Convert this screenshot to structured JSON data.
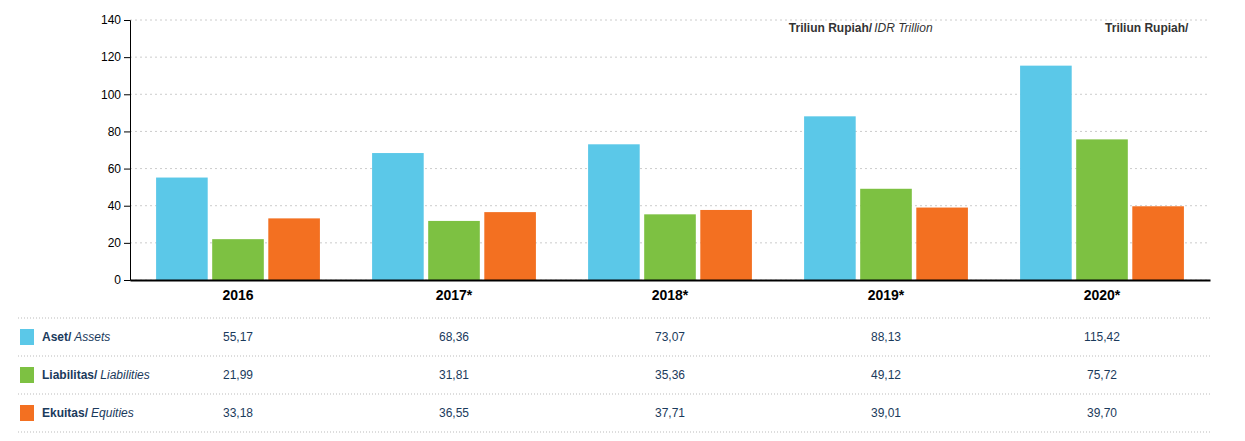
{
  "chart_data": {
    "type": "bar",
    "categories": [
      "2016",
      "2017*",
      "2018*",
      "2019*",
      "2020*"
    ],
    "series": [
      {
        "name": "Aset/Assets",
        "color": "#5BC8E8",
        "values": [
          55.17,
          68.36,
          73.07,
          88.13,
          115.42
        ],
        "value_labels": [
          "55,17",
          "68,36",
          "73,07",
          "88,13",
          "115,42"
        ]
      },
      {
        "name": "Liabilitas/Liabilities",
        "color": "#7DC142",
        "values": [
          21.99,
          31.81,
          35.36,
          49.12,
          75.72
        ],
        "value_labels": [
          "21,99",
          "31,81",
          "35,36",
          "49,12",
          "75,72"
        ]
      },
      {
        "name": "Ekuitas/Equities",
        "color": "#F37021",
        "values": [
          33.18,
          36.55,
          37.71,
          39.01,
          39.7
        ],
        "value_labels": [
          "33,18",
          "36,55",
          "37,71",
          "39,01",
          "39,70"
        ]
      }
    ],
    "ylim": [
      0,
      140
    ],
    "yticks": [
      0,
      20,
      40,
      60,
      80,
      100,
      120,
      140
    ],
    "grid": true,
    "legend": "bottom",
    "annotations": [
      "Triliun Rupiah/",
      "IDR Trillion",
      "Triliun Rupiah/"
    ]
  }
}
